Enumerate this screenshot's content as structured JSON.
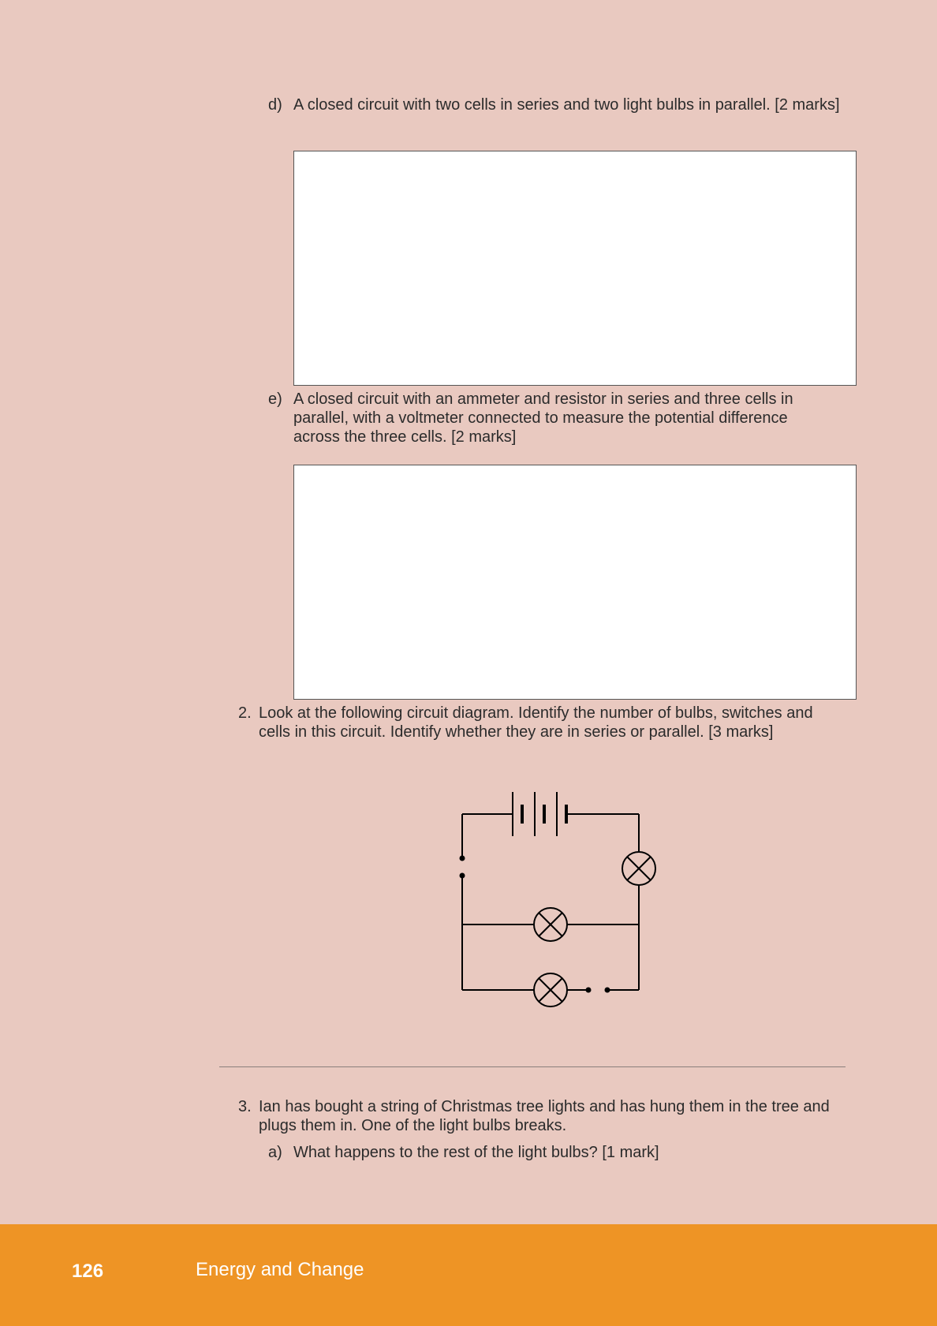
{
  "q1d": {
    "label": "d)",
    "text": "A closed circuit with two cells in series and two light bulbs in parallel. [2 marks]"
  },
  "q1e": {
    "label": "e)",
    "text": "A closed circuit with an ammeter and resistor in series and three cells in parallel, with a voltmeter connected to measure the potential difference across the three cells. [2 marks]"
  },
  "q2": {
    "label": "2.",
    "text": "Look at the following circuit diagram. Identify the number of bulbs, switches and cells in this circuit. Identify whether they are in series or parallel. [3 marks]"
  },
  "q3": {
    "label": "3.",
    "text": "Ian has bought a string of Christmas tree lights and has hung them in the tree and plugs them in. One of the light bulbs breaks."
  },
  "q3a": {
    "label": "a)",
    "text": "What happens to the rest of the light bulbs? [1 mark]"
  },
  "footer": {
    "page_number": "126",
    "chapter_title": "Energy and Change"
  },
  "colors": {
    "page_background": "#e9c9c0",
    "footer_band": "#ee9425",
    "footer_text": "#ffffff"
  }
}
